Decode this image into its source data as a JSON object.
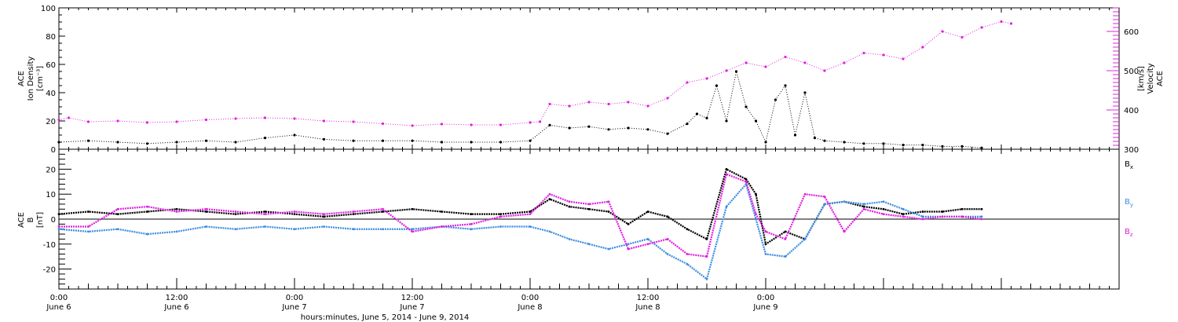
{
  "chart_data": [
    {
      "type": "scatter",
      "panel": "top",
      "left_axis": {
        "label_lines": [
          "ACE",
          "Ion Density",
          "[cm⁻³]"
        ],
        "ylim": [
          0,
          100
        ],
        "ticks": [
          0,
          20,
          40,
          60,
          80,
          100
        ],
        "color": "#000000"
      },
      "right_axis": {
        "label_lines": [
          "ACE",
          "Velocity",
          "[km/s]"
        ],
        "ylim": [
          300,
          660
        ],
        "ticks": [
          300,
          400,
          500,
          600
        ],
        "color": "#e020e0"
      },
      "series": [
        {
          "axis": "left",
          "color": "#000000",
          "points": [
            [
              0,
              5
            ],
            [
              3,
              6
            ],
            [
              6,
              5
            ],
            [
              9,
              4
            ],
            [
              12,
              5
            ],
            [
              15,
              6
            ],
            [
              18,
              5
            ],
            [
              21,
              8
            ],
            [
              24,
              10
            ],
            [
              27,
              7
            ],
            [
              30,
              6
            ],
            [
              33,
              6
            ],
            [
              36,
              6
            ],
            [
              39,
              5
            ],
            [
              42,
              5
            ],
            [
              45,
              5
            ],
            [
              48,
              6
            ],
            [
              50,
              17
            ],
            [
              52,
              15
            ],
            [
              54,
              16
            ],
            [
              56,
              14
            ],
            [
              58,
              15
            ],
            [
              60,
              14
            ],
            [
              62,
              11
            ],
            [
              64,
              18
            ],
            [
              65,
              25
            ],
            [
              66,
              22
            ],
            [
              67,
              45
            ],
            [
              68,
              20
            ],
            [
              69,
              55
            ],
            [
              70,
              30
            ],
            [
              71,
              20
            ],
            [
              72,
              5
            ],
            [
              73,
              35
            ],
            [
              74,
              45
            ],
            [
              75,
              10
            ],
            [
              76,
              40
            ],
            [
              77,
              8
            ],
            [
              78,
              6
            ],
            [
              80,
              5
            ],
            [
              82,
              4
            ],
            [
              84,
              4
            ],
            [
              86,
              3
            ],
            [
              88,
              3
            ],
            [
              90,
              2
            ],
            [
              92,
              2
            ],
            [
              94,
              1
            ]
          ]
        },
        {
          "axis": "right",
          "color": "#e020e0",
          "points": [
            [
              0,
              375
            ],
            [
              1,
              380
            ],
            [
              3,
              370
            ],
            [
              6,
              372
            ],
            [
              9,
              368
            ],
            [
              12,
              370
            ],
            [
              15,
              375
            ],
            [
              18,
              378
            ],
            [
              21,
              380
            ],
            [
              24,
              378
            ],
            [
              27,
              372
            ],
            [
              30,
              370
            ],
            [
              33,
              365
            ],
            [
              36,
              360
            ],
            [
              39,
              364
            ],
            [
              42,
              362
            ],
            [
              45,
              362
            ],
            [
              48,
              368
            ],
            [
              49,
              370
            ],
            [
              50,
              415
            ],
            [
              52,
              410
            ],
            [
              54,
              420
            ],
            [
              56,
              415
            ],
            [
              58,
              420
            ],
            [
              60,
              410
            ],
            [
              62,
              430
            ],
            [
              64,
              470
            ],
            [
              66,
              480
            ],
            [
              68,
              500
            ],
            [
              70,
              520
            ],
            [
              72,
              510
            ],
            [
              74,
              535
            ],
            [
              76,
              520
            ],
            [
              78,
              500
            ],
            [
              80,
              520
            ],
            [
              82,
              545
            ],
            [
              84,
              540
            ],
            [
              86,
              530
            ],
            [
              88,
              560
            ],
            [
              90,
              600
            ],
            [
              92,
              585
            ],
            [
              94,
              610
            ],
            [
              96,
              625
            ],
            [
              97,
              620
            ]
          ]
        }
      ]
    },
    {
      "type": "line",
      "panel": "bottom",
      "axis": {
        "label_lines": [
          "ACE",
          "B",
          "[nT]"
        ],
        "ylim": [
          -28,
          28
        ],
        "ticks": [
          -20,
          -10,
          0,
          10,
          20
        ],
        "zero_line": true
      },
      "series": [
        {
          "name": "Bx",
          "color": "#000000",
          "points": [
            [
              0,
              2
            ],
            [
              3,
              3
            ],
            [
              6,
              2
            ],
            [
              9,
              3
            ],
            [
              12,
              4
            ],
            [
              15,
              3
            ],
            [
              18,
              2
            ],
            [
              21,
              3
            ],
            [
              24,
              2
            ],
            [
              27,
              1
            ],
            [
              30,
              2
            ],
            [
              33,
              3
            ],
            [
              36,
              4
            ],
            [
              39,
              3
            ],
            [
              42,
              2
            ],
            [
              45,
              2
            ],
            [
              48,
              3
            ],
            [
              50,
              8
            ],
            [
              52,
              5
            ],
            [
              54,
              4
            ],
            [
              56,
              3
            ],
            [
              58,
              -2
            ],
            [
              60,
              3
            ],
            [
              62,
              1
            ],
            [
              64,
              -4
            ],
            [
              66,
              -8
            ],
            [
              68,
              20
            ],
            [
              70,
              16
            ],
            [
              71,
              10
            ],
            [
              72,
              -10
            ],
            [
              74,
              -5
            ],
            [
              76,
              -8
            ],
            [
              78,
              6
            ],
            [
              80,
              7
            ],
            [
              82,
              5
            ],
            [
              84,
              4
            ],
            [
              86,
              2
            ],
            [
              88,
              3
            ],
            [
              90,
              3
            ],
            [
              92,
              4
            ],
            [
              94,
              4
            ]
          ]
        },
        {
          "name": "By",
          "color": "#3d8ee0",
          "points": [
            [
              0,
              -4
            ],
            [
              3,
              -5
            ],
            [
              6,
              -4
            ],
            [
              9,
              -6
            ],
            [
              12,
              -5
            ],
            [
              15,
              -3
            ],
            [
              18,
              -4
            ],
            [
              21,
              -3
            ],
            [
              24,
              -4
            ],
            [
              27,
              -3
            ],
            [
              30,
              -4
            ],
            [
              33,
              -4
            ],
            [
              36,
              -4
            ],
            [
              39,
              -3
            ],
            [
              42,
              -4
            ],
            [
              45,
              -3
            ],
            [
              48,
              -3
            ],
            [
              50,
              -5
            ],
            [
              52,
              -8
            ],
            [
              54,
              -10
            ],
            [
              56,
              -12
            ],
            [
              58,
              -10
            ],
            [
              60,
              -8
            ],
            [
              62,
              -14
            ],
            [
              64,
              -18
            ],
            [
              66,
              -24
            ],
            [
              68,
              5
            ],
            [
              70,
              14
            ],
            [
              71,
              0
            ],
            [
              72,
              -14
            ],
            [
              74,
              -15
            ],
            [
              76,
              -8
            ],
            [
              78,
              6
            ],
            [
              80,
              7
            ],
            [
              82,
              6
            ],
            [
              84,
              7
            ],
            [
              86,
              4
            ],
            [
              88,
              1
            ],
            [
              90,
              1
            ],
            [
              92,
              1
            ],
            [
              94,
              1
            ]
          ]
        },
        {
          "name": "Bz",
          "color": "#e020e0",
          "points": [
            [
              0,
              -3
            ],
            [
              3,
              -3
            ],
            [
              6,
              4
            ],
            [
              9,
              5
            ],
            [
              12,
              3
            ],
            [
              15,
              4
            ],
            [
              18,
              3
            ],
            [
              21,
              2
            ],
            [
              24,
              3
            ],
            [
              27,
              2
            ],
            [
              30,
              3
            ],
            [
              33,
              4
            ],
            [
              36,
              -5
            ],
            [
              39,
              -3
            ],
            [
              42,
              -2
            ],
            [
              45,
              1
            ],
            [
              48,
              2
            ],
            [
              50,
              10
            ],
            [
              52,
              7
            ],
            [
              54,
              6
            ],
            [
              56,
              7
            ],
            [
              58,
              -12
            ],
            [
              60,
              -10
            ],
            [
              62,
              -8
            ],
            [
              64,
              -14
            ],
            [
              66,
              -15
            ],
            [
              68,
              18
            ],
            [
              70,
              15
            ],
            [
              71,
              2
            ],
            [
              72,
              -5
            ],
            [
              74,
              -8
            ],
            [
              76,
              10
            ],
            [
              78,
              9
            ],
            [
              80,
              -5
            ],
            [
              82,
              4
            ],
            [
              84,
              2
            ],
            [
              86,
              1
            ],
            [
              88,
              0
            ],
            [
              90,
              1
            ],
            [
              92,
              1
            ],
            [
              94,
              0
            ]
          ]
        }
      ],
      "legend": {
        "placement": "right",
        "entries": [
          {
            "base": "B",
            "sub": "x",
            "color": "#000000"
          },
          {
            "base": "B",
            "sub": "y",
            "color": "#3d8ee0"
          },
          {
            "base": "B",
            "sub": "z",
            "color": "#e020e0"
          }
        ]
      }
    }
  ],
  "x_axis": {
    "xlim": [
      0,
      108
    ],
    "unit": "hours",
    "ticks": [
      {
        "hours": 0,
        "time": "0:00",
        "day": "June 6"
      },
      {
        "hours": 12,
        "time": "12:00",
        "day": "June 6"
      },
      {
        "hours": 24,
        "time": "0:00",
        "day": "June 7"
      },
      {
        "hours": 36,
        "time": "12:00",
        "day": "June 7"
      },
      {
        "hours": 48,
        "time": "0:00",
        "day": "June 8"
      },
      {
        "hours": 60,
        "time": "12:00",
        "day": "June 8"
      },
      {
        "hours": 72,
        "time": "0:00",
        "day": "June 9"
      }
    ],
    "label": "hours:minutes, June  5, 2014 - June  9, 2014"
  }
}
